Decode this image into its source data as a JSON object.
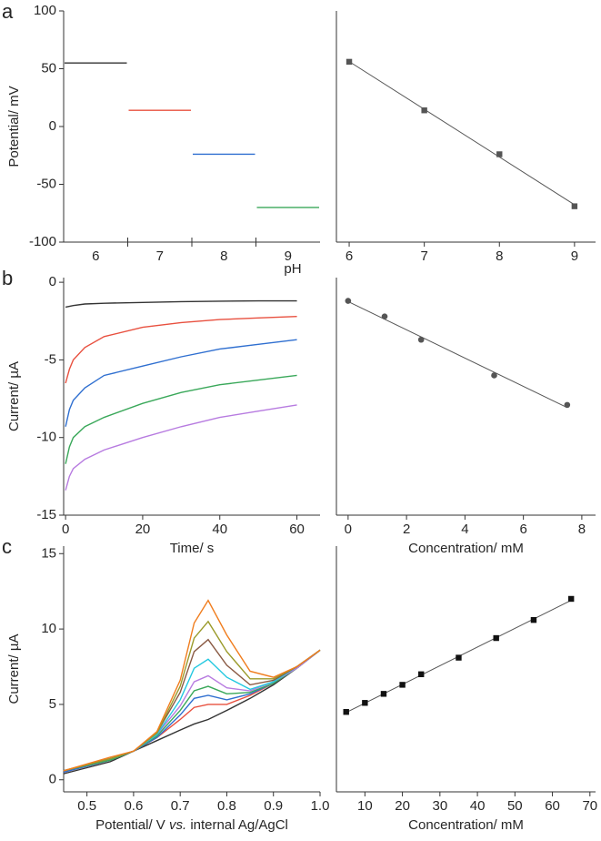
{
  "chart_data": [
    {
      "type": "segment",
      "panel": "a",
      "ylabel": "Potential/ mV",
      "xlabel": "pH",
      "categories": [
        6,
        7,
        8,
        9
      ],
      "values": [
        55,
        14,
        -24,
        -70
      ],
      "colors": [
        "#333333",
        "#e8503f",
        "#2f6fd0",
        "#3aa85a"
      ],
      "ylim": [
        -100,
        100
      ],
      "yticks": [
        -100,
        -50,
        0,
        50,
        100
      ]
    },
    {
      "type": "scatter",
      "marker": "square",
      "color": "#555555",
      "fit": true,
      "x": [
        6,
        7,
        8,
        9
      ],
      "values": [
        56,
        14,
        -24,
        -69
      ],
      "xlim": [
        5.83,
        9.28
      ],
      "xticks": [
        6,
        7,
        8,
        9
      ],
      "ylim": [
        -100,
        100
      ]
    },
    {
      "type": "line",
      "panel": "b",
      "ylabel": "Current/ µA",
      "xlabel": "Time/ s",
      "x": [
        0,
        1,
        2,
        5,
        10,
        20,
        30,
        40,
        50,
        60
      ],
      "series": [
        {
          "color": "#333333",
          "values": [
            -1.6,
            -1.55,
            -1.5,
            -1.4,
            -1.35,
            -1.3,
            -1.25,
            -1.22,
            -1.2,
            -1.2
          ]
        },
        {
          "color": "#e8503f",
          "values": [
            -6.5,
            -5.6,
            -5.0,
            -4.2,
            -3.5,
            -2.9,
            -2.6,
            -2.4,
            -2.3,
            -2.2
          ]
        },
        {
          "color": "#2f6fd0",
          "values": [
            -9.3,
            -8.2,
            -7.6,
            -6.8,
            -6.0,
            -5.4,
            -4.8,
            -4.3,
            -4.0,
            -3.7
          ]
        },
        {
          "color": "#3aa85a",
          "values": [
            -11.7,
            -10.6,
            -10.0,
            -9.3,
            -8.7,
            -7.8,
            -7.1,
            -6.6,
            -6.3,
            -6.0
          ]
        },
        {
          "color": "#b77be0",
          "values": [
            -13.4,
            -12.5,
            -12.0,
            -11.4,
            -10.8,
            -10.0,
            -9.3,
            -8.7,
            -8.3,
            -7.9
          ]
        }
      ],
      "xlim": [
        -0.5,
        66
      ],
      "xticks": [
        0,
        20,
        40,
        60
      ],
      "ylim": [
        -15,
        0.3
      ],
      "yticks": [
        -15,
        -10,
        -5,
        0
      ]
    },
    {
      "type": "scatter",
      "marker": "circle",
      "color": "#555555",
      "fit": true,
      "xlabel": "Concentration/ mM",
      "x": [
        0,
        1.25,
        2.5,
        5,
        7.5
      ],
      "values": [
        -1.2,
        -2.2,
        -3.7,
        -6.0,
        -7.9
      ],
      "xlim": [
        -0.4,
        8.47
      ],
      "xticks": [
        0,
        2,
        4,
        6,
        8
      ],
      "ylim": [
        -15,
        0.3
      ]
    },
    {
      "type": "line",
      "panel": "c",
      "ylabel": "Current/ µA",
      "xlabel_parts": [
        "Potential/ V ",
        "vs.",
        " internal Ag/AgCl"
      ],
      "x": [
        0.45,
        0.55,
        0.6,
        0.65,
        0.7,
        0.73,
        0.76,
        0.8,
        0.85,
        0.9,
        0.95,
        1.0
      ],
      "series": [
        {
          "color": "#333333",
          "values": [
            0.4,
            1.2,
            1.9,
            2.6,
            3.3,
            3.7,
            4.0,
            4.6,
            5.4,
            6.3,
            7.4,
            8.6
          ]
        },
        {
          "color": "#e8503f",
          "values": [
            0.5,
            1.3,
            1.9,
            2.8,
            4.0,
            4.8,
            5.0,
            5.0,
            5.6,
            6.4,
            7.4,
            8.6
          ]
        },
        {
          "color": "#2f6fd0",
          "values": [
            0.5,
            1.3,
            1.9,
            2.8,
            4.3,
            5.4,
            5.6,
            5.3,
            5.7,
            6.4,
            7.4,
            8.6
          ]
        },
        {
          "color": "#3aa85a",
          "values": [
            0.6,
            1.3,
            1.9,
            2.9,
            4.6,
            5.9,
            6.2,
            5.7,
            5.8,
            6.4,
            7.4,
            8.6
          ]
        },
        {
          "color": "#b77be0",
          "values": [
            0.6,
            1.4,
            1.9,
            3.0,
            4.9,
            6.5,
            6.9,
            6.1,
            5.9,
            6.5,
            7.4,
            8.6
          ]
        },
        {
          "color": "#22c8e0",
          "values": [
            0.6,
            1.4,
            1.9,
            3.0,
            5.3,
            7.4,
            8.0,
            6.8,
            6.0,
            6.5,
            7.5,
            8.6
          ]
        },
        {
          "color": "#8a5a44",
          "values": [
            0.6,
            1.4,
            1.9,
            3.1,
            5.8,
            8.5,
            9.3,
            7.6,
            6.3,
            6.6,
            7.5,
            8.6
          ]
        },
        {
          "color": "#9a9a2a",
          "values": [
            0.6,
            1.4,
            1.9,
            3.1,
            6.2,
            9.4,
            10.5,
            8.5,
            6.7,
            6.7,
            7.5,
            8.6
          ]
        },
        {
          "color": "#f07d1e",
          "values": [
            0.6,
            1.5,
            1.9,
            3.2,
            6.6,
            10.4,
            11.9,
            9.6,
            7.2,
            6.8,
            7.5,
            8.6
          ]
        }
      ],
      "xlim": [
        0.45,
        1.0
      ],
      "xticks": [
        0.5,
        0.6,
        0.7,
        0.8,
        0.9,
        {
          "value": 1,
          "label": "1.0"
        }
      ],
      "ylim": [
        -0.8,
        15.5
      ],
      "yticks": [
        0,
        5,
        10,
        15
      ]
    },
    {
      "type": "scatter",
      "marker": "square",
      "color": "#111111",
      "fit": true,
      "xlabel": "Concentration/ mM",
      "x": [
        5,
        10,
        15,
        20,
        25,
        35,
        45,
        55,
        65
      ],
      "values": [
        4.5,
        5.1,
        5.7,
        6.3,
        7.0,
        8.1,
        9.4,
        10.6,
        12.0
      ],
      "xlim": [
        2.4,
        71.5
      ],
      "xticks": [
        10,
        20,
        30,
        40,
        50,
        60,
        70
      ],
      "ylim": [
        -0.8,
        15.5
      ]
    }
  ]
}
